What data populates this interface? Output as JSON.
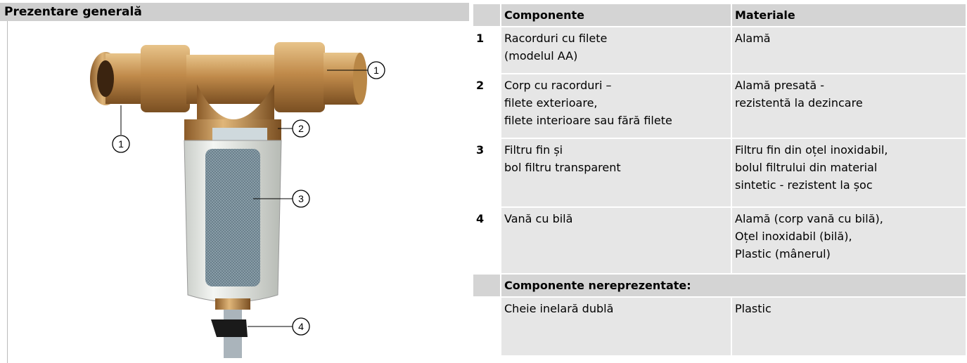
{
  "overview": {
    "title": "Prezentare generală",
    "callouts": [
      "1",
      "1",
      "2",
      "3",
      "4"
    ]
  },
  "table": {
    "header": [
      "Componente",
      "Materiale"
    ],
    "rows": [
      {
        "number": "1",
        "component": [
          "Racorduri cu filete",
          "(modelul AA)"
        ],
        "material": [
          "Alamă"
        ]
      },
      {
        "number": "2",
        "component": [
          "Corp cu racorduri –",
          "filete exterioare,",
          "filete interioare sau fără filete"
        ],
        "material": [
          "Alamă presată -",
          "rezistentă la dezincare"
        ]
      },
      {
        "number": "3",
        "component": [
          "Filtru fin și",
          "bol filtru transparent"
        ],
        "material": [
          "Filtru fin din oțel inoxidabil,",
          "bolul filtrului din material",
          "sintetic - rezistent la șoc"
        ]
      },
      {
        "number": "4",
        "component": [
          "Vană cu bilă"
        ],
        "material": [
          "Alamă (corp vană cu bilă),",
          "Oțel inoxidabil (bilă),",
          "Plastic (mânerul)"
        ]
      }
    ],
    "section": "Componente nereprezentate:",
    "extra_rows": [
      {
        "component": [
          "Cheie inelară dublă"
        ],
        "material": [
          "Plastic"
        ]
      }
    ]
  }
}
